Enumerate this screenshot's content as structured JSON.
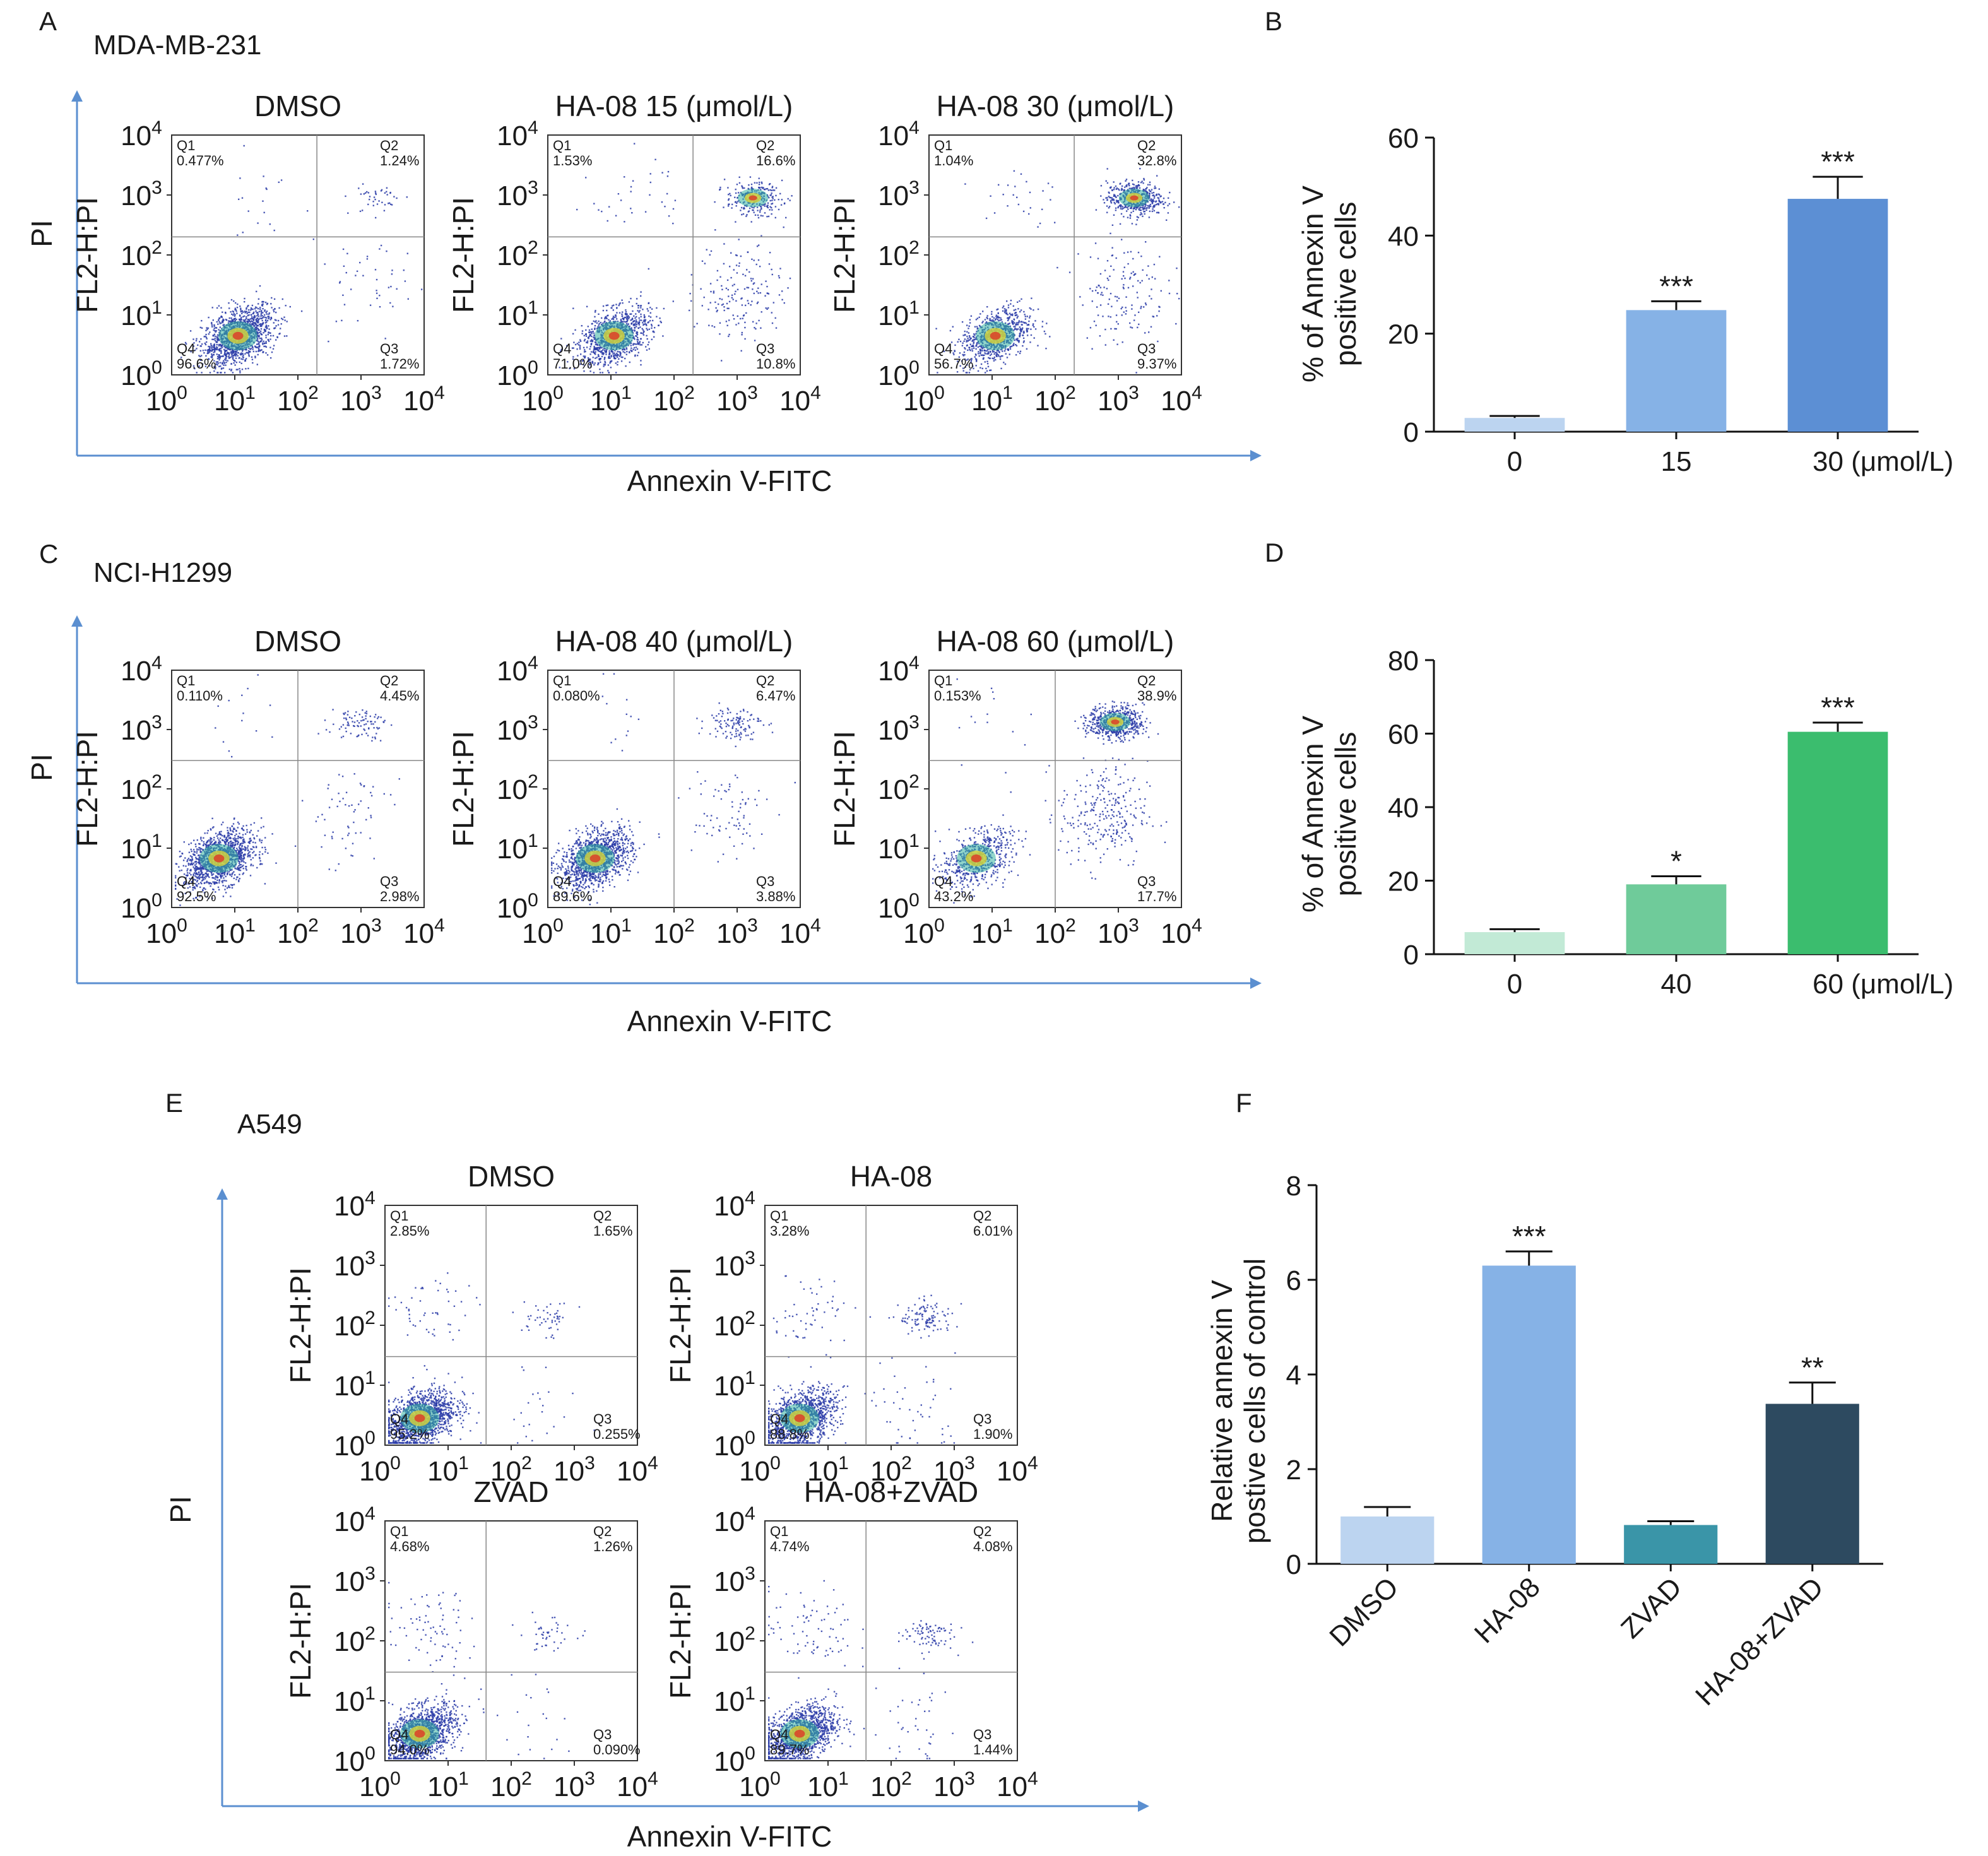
{
  "colors": {
    "arrow": "#5b8fd0",
    "dot": "#2b3ca8",
    "b_bars": [
      "#bcd4f0",
      "#86b2e6",
      "#5c8fd4"
    ],
    "d_bars": [
      "#c2ead6",
      "#6fcb9a",
      "#3bbd6e"
    ],
    "f_bars": [
      "#bcd4f0",
      "#86b2e6",
      "#3a95a8",
      "#2d4a60"
    ]
  },
  "chart_data": [
    {
      "type": "scatter",
      "panel": "A",
      "cell_line": "MDA-MB-231",
      "xlabel": "Annexin V-FITC",
      "ylabel": "PI",
      "plot_ylabel": "FL2-H:PI",
      "axis_scale": "log",
      "tick_labels": [
        "10^0",
        "10^1",
        "10^2",
        "10^3",
        "10^4"
      ],
      "plots": [
        {
          "title": "DMSO",
          "gate_x": 200,
          "gate_y": 200,
          "quadrants": {
            "Q1": "0.477%",
            "Q2": "1.24%",
            "Q3": "1.72%",
            "Q4": "96.6%"
          }
        },
        {
          "title": "HA-08 15 (μmol/L)",
          "gate_x": 200,
          "gate_y": 200,
          "quadrants": {
            "Q1": "1.53%",
            "Q2": "16.6%",
            "Q3": "10.8%",
            "Q4": "71.0%"
          }
        },
        {
          "title": "HA-08 30 (μmol/L)",
          "gate_x": 200,
          "gate_y": 200,
          "quadrants": {
            "Q1": "1.04%",
            "Q2": "32.8%",
            "Q3": "9.37%",
            "Q4": "56.7%"
          }
        }
      ]
    },
    {
      "type": "bar",
      "panel": "B",
      "categories": [
        "0",
        "15",
        "30 (μmol/L)"
      ],
      "values": [
        2.8,
        24.8,
        47.5
      ],
      "errors": [
        0.4,
        1.8,
        4.5
      ],
      "significance": [
        "",
        "***",
        "***"
      ],
      "ylabel_line1": "% of Annexin V",
      "ylabel_line2": "positive cells",
      "ylim": [
        0,
        60
      ],
      "yticks": [
        0,
        20,
        40,
        60
      ]
    },
    {
      "type": "scatter",
      "panel": "C",
      "cell_line": "NCI-H1299",
      "xlabel": "Annexin V-FITC",
      "ylabel": "PI",
      "plot_ylabel": "FL2-H:PI",
      "axis_scale": "log",
      "tick_labels": [
        "10^0",
        "10^1",
        "10^2",
        "10^3",
        "10^4"
      ],
      "plots": [
        {
          "title": "DMSO",
          "gate_x": 100,
          "gate_y": 300,
          "quadrants": {
            "Q1": "0.110%",
            "Q2": "4.45%",
            "Q3": "2.98%",
            "Q4": "92.5%"
          }
        },
        {
          "title": "HA-08 40 (μmol/L)",
          "gate_x": 100,
          "gate_y": 300,
          "quadrants": {
            "Q1": "0.080%",
            "Q2": "6.47%",
            "Q3": "3.88%",
            "Q4": "89.6%"
          }
        },
        {
          "title": "HA-08 60 (μmol/L)",
          "gate_x": 100,
          "gate_y": 300,
          "quadrants": {
            "Q1": "0.153%",
            "Q2": "38.9%",
            "Q3": "17.7%",
            "Q4": "43.2%"
          }
        }
      ]
    },
    {
      "type": "bar",
      "panel": "D",
      "categories": [
        "0",
        "40",
        "60 (μmol/L)"
      ],
      "values": [
        6.0,
        19.0,
        60.5
      ],
      "errors": [
        0.8,
        2.2,
        2.5
      ],
      "significance": [
        "",
        "*",
        "***"
      ],
      "ylabel_line1": "% of Annexin V",
      "ylabel_line2": "positive cells",
      "ylim": [
        0,
        80
      ],
      "yticks": [
        0,
        20,
        40,
        60,
        80
      ]
    },
    {
      "type": "scatter",
      "panel": "E",
      "cell_line": "A549",
      "xlabel": "Annexin V-FITC",
      "ylabel": "PI",
      "plot_ylabel": "FL2-H:PI",
      "axis_scale": "log",
      "tick_labels": [
        "10^0",
        "10^1",
        "10^2",
        "10^3",
        "10^4"
      ],
      "plots": [
        {
          "title": "DMSO",
          "gate_x": 40,
          "gate_y": 30,
          "quadrants": {
            "Q1": "2.85%",
            "Q2": "1.65%",
            "Q3": "0.255%",
            "Q4": "95.2%"
          }
        },
        {
          "title": "HA-08",
          "gate_x": 40,
          "gate_y": 30,
          "quadrants": {
            "Q1": "3.28%",
            "Q2": "6.01%",
            "Q3": "1.90%",
            "Q4": "88.8%"
          }
        },
        {
          "title": "ZVAD",
          "gate_x": 40,
          "gate_y": 30,
          "quadrants": {
            "Q1": "4.68%",
            "Q2": "1.26%",
            "Q3": "0.090%",
            "Q4": "94.0%"
          }
        },
        {
          "title": "HA-08+ZVAD",
          "gate_x": 40,
          "gate_y": 30,
          "quadrants": {
            "Q1": "4.74%",
            "Q2": "4.08%",
            "Q3": "1.44%",
            "Q4": "89.7%"
          }
        }
      ]
    },
    {
      "type": "bar",
      "panel": "F",
      "categories": [
        "DMSO",
        "HA-08",
        "ZVAD",
        "HA-08+ZVAD"
      ],
      "values": [
        1.0,
        6.3,
        0.82,
        3.38
      ],
      "errors": [
        0.2,
        0.3,
        0.08,
        0.45
      ],
      "significance": [
        "",
        "***",
        "",
        "**"
      ],
      "ylabel_line1": "Relative annexin V",
      "ylabel_line2": "postive cells of control",
      "ylim": [
        0,
        8
      ],
      "yticks": [
        0,
        2,
        4,
        6,
        8
      ]
    }
  ]
}
